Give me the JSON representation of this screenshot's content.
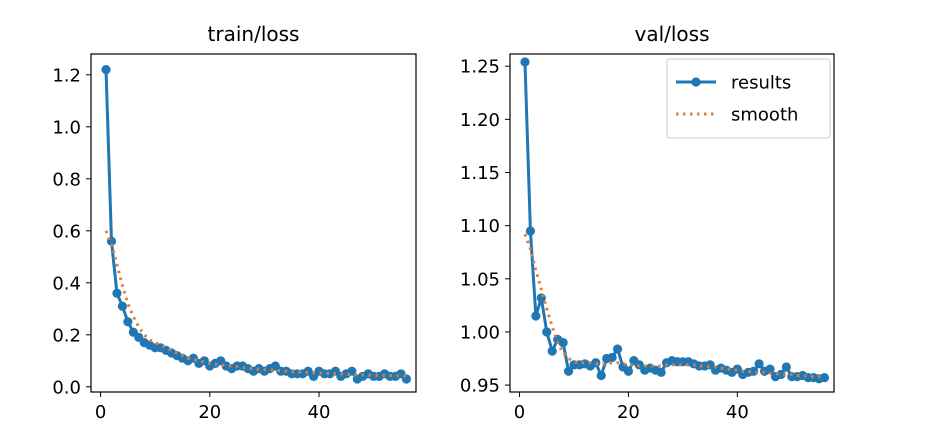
{
  "chart_data": [
    {
      "type": "line",
      "title": "train/loss",
      "xlabel": "",
      "ylabel": "",
      "xlim": [
        -1.75,
        57.75
      ],
      "ylim": [
        -0.02,
        1.28
      ],
      "xticks": [
        0,
        20,
        40
      ],
      "xtick_labels": [
        "0",
        "20",
        "40"
      ],
      "yticks": [
        0.0,
        0.2,
        0.4,
        0.6,
        0.8,
        1.0,
        1.2
      ],
      "ytick_labels": [
        "0.0",
        "0.2",
        "0.4",
        "0.6",
        "0.8",
        "1.0",
        "1.2"
      ],
      "legend": null,
      "series": [
        {
          "name": "results",
          "style": "line-marker",
          "color": "#1f77b4",
          "x": [
            1,
            2,
            3,
            4,
            5,
            6,
            7,
            8,
            9,
            10,
            11,
            12,
            13,
            14,
            15,
            16,
            17,
            18,
            19,
            20,
            21,
            22,
            23,
            24,
            25,
            26,
            27,
            28,
            29,
            30,
            31,
            32,
            33,
            34,
            35,
            36,
            37,
            38,
            39,
            40,
            41,
            42,
            43,
            44,
            45,
            46,
            47,
            48,
            49,
            50,
            51,
            52,
            53,
            54,
            55,
            56
          ],
          "values": [
            1.22,
            0.56,
            0.36,
            0.31,
            0.25,
            0.21,
            0.19,
            0.17,
            0.16,
            0.15,
            0.15,
            0.14,
            0.13,
            0.12,
            0.11,
            0.1,
            0.11,
            0.09,
            0.1,
            0.08,
            0.09,
            0.1,
            0.08,
            0.07,
            0.08,
            0.08,
            0.07,
            0.06,
            0.07,
            0.06,
            0.07,
            0.08,
            0.06,
            0.06,
            0.05,
            0.05,
            0.05,
            0.06,
            0.04,
            0.06,
            0.05,
            0.05,
            0.06,
            0.04,
            0.05,
            0.06,
            0.03,
            0.04,
            0.05,
            0.04,
            0.04,
            0.05,
            0.04,
            0.04,
            0.05,
            0.03
          ]
        },
        {
          "name": "smooth",
          "style": "dotted",
          "color": "#e07b39",
          "x": [
            1,
            2,
            3,
            4,
            5,
            6,
            7,
            8,
            9,
            10,
            11,
            12,
            13,
            14,
            15,
            16,
            17,
            18,
            19,
            20,
            21,
            22,
            23,
            24,
            25,
            26,
            27,
            28,
            29,
            30,
            31,
            32,
            33,
            34,
            35,
            36,
            37,
            38,
            39,
            40,
            41,
            42,
            43,
            44,
            45,
            46,
            47,
            48,
            49,
            50,
            51,
            52,
            53,
            54,
            55,
            56
          ],
          "values": [
            0.6,
            0.55,
            0.47,
            0.39,
            0.32,
            0.27,
            0.23,
            0.2,
            0.18,
            0.17,
            0.16,
            0.15,
            0.14,
            0.13,
            0.12,
            0.11,
            0.105,
            0.1,
            0.095,
            0.09,
            0.088,
            0.085,
            0.082,
            0.08,
            0.077,
            0.074,
            0.072,
            0.07,
            0.068,
            0.066,
            0.065,
            0.064,
            0.062,
            0.06,
            0.058,
            0.057,
            0.056,
            0.055,
            0.054,
            0.053,
            0.052,
            0.051,
            0.05,
            0.049,
            0.048,
            0.047,
            0.046,
            0.046,
            0.045,
            0.045,
            0.044,
            0.044,
            0.043,
            0.043,
            0.042,
            0.042
          ]
        }
      ]
    },
    {
      "type": "line",
      "title": "val/loss",
      "xlabel": "",
      "ylabel": "",
      "xlim": [
        -1.75,
        57.75
      ],
      "ylim": [
        0.9435,
        1.2615
      ],
      "xticks": [
        0,
        20,
        40
      ],
      "xtick_labels": [
        "0",
        "20",
        "40"
      ],
      "yticks": [
        0.95,
        1.0,
        1.05,
        1.1,
        1.15,
        1.2,
        1.25
      ],
      "ytick_labels": [
        "0.95",
        "1.00",
        "1.05",
        "1.10",
        "1.15",
        "1.20",
        "1.25"
      ],
      "legend": {
        "position": "top-right",
        "entries": [
          "results",
          "smooth"
        ]
      },
      "series": [
        {
          "name": "results",
          "style": "line-marker",
          "color": "#1f77b4",
          "x": [
            1,
            2,
            3,
            4,
            5,
            6,
            7,
            8,
            9,
            10,
            11,
            12,
            13,
            14,
            15,
            16,
            17,
            18,
            19,
            20,
            21,
            22,
            23,
            24,
            25,
            26,
            27,
            28,
            29,
            30,
            31,
            32,
            33,
            34,
            35,
            36,
            37,
            38,
            39,
            40,
            41,
            42,
            43,
            44,
            45,
            46,
            47,
            48,
            49,
            50,
            51,
            52,
            53,
            54,
            55,
            56
          ],
          "values": [
            1.254,
            1.095,
            1.015,
            1.032,
            1.0,
            0.982,
            0.993,
            0.99,
            0.963,
            0.969,
            0.969,
            0.97,
            0.968,
            0.971,
            0.959,
            0.975,
            0.976,
            0.984,
            0.967,
            0.963,
            0.973,
            0.969,
            0.964,
            0.966,
            0.964,
            0.962,
            0.971,
            0.973,
            0.972,
            0.972,
            0.972,
            0.97,
            0.968,
            0.968,
            0.969,
            0.964,
            0.966,
            0.964,
            0.962,
            0.965,
            0.96,
            0.962,
            0.963,
            0.97,
            0.963,
            0.965,
            0.958,
            0.96,
            0.967,
            0.958,
            0.958,
            0.959,
            0.957,
            0.957,
            0.956,
            0.957
          ]
        },
        {
          "name": "smooth",
          "style": "dotted",
          "color": "#e07b39",
          "x": [
            1,
            2,
            3,
            4,
            5,
            6,
            7,
            8,
            9,
            10,
            11,
            12,
            13,
            14,
            15,
            16,
            17,
            18,
            19,
            20,
            21,
            22,
            23,
            24,
            25,
            26,
            27,
            28,
            29,
            30,
            31,
            32,
            33,
            34,
            35,
            36,
            37,
            38,
            39,
            40,
            41,
            42,
            43,
            44,
            45,
            46,
            47,
            48,
            49,
            50,
            51,
            52,
            53,
            54,
            55,
            56
          ],
          "values": [
            1.092,
            1.078,
            1.058,
            1.04,
            1.022,
            1.005,
            0.99,
            0.98,
            0.975,
            0.972,
            0.971,
            0.971,
            0.971,
            0.97,
            0.97,
            0.97,
            0.971,
            0.971,
            0.97,
            0.969,
            0.969,
            0.968,
            0.968,
            0.968,
            0.968,
            0.968,
            0.969,
            0.969,
            0.969,
            0.969,
            0.969,
            0.969,
            0.968,
            0.968,
            0.967,
            0.967,
            0.966,
            0.965,
            0.965,
            0.964,
            0.963,
            0.963,
            0.962,
            0.962,
            0.962,
            0.961,
            0.961,
            0.96,
            0.96,
            0.96,
            0.959,
            0.959,
            0.958,
            0.958,
            0.958,
            0.958
          ]
        }
      ]
    }
  ]
}
